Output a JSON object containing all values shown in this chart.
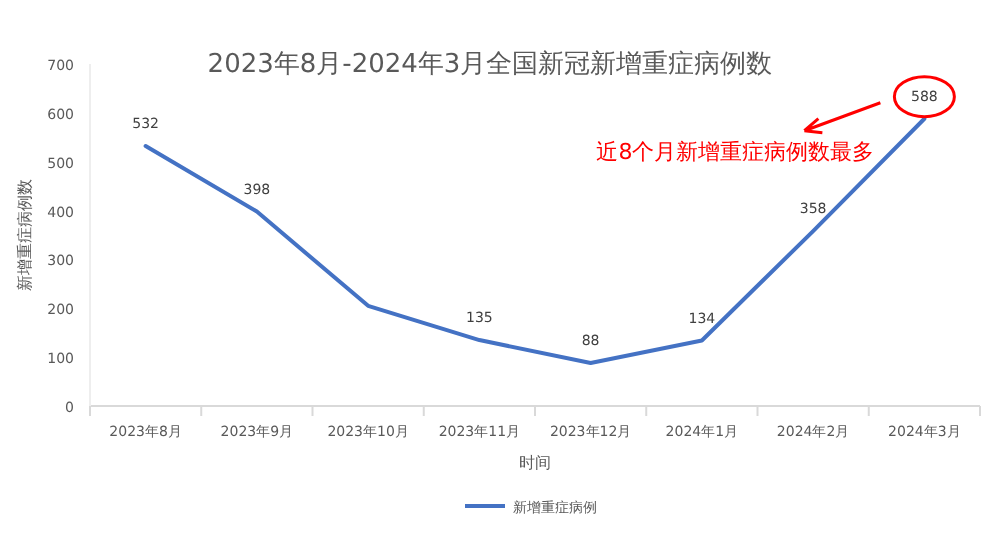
{
  "chart_data": {
    "type": "line",
    "title": "2023年8月-2024年3月全国新冠新增重症病例数",
    "xlabel": "时间",
    "ylabel": "新增重症病例数",
    "categories": [
      "2023年8月",
      "2023年9月",
      "2023年10月",
      "2023年11月",
      "2023年12月",
      "2024年1月",
      "2024年2月",
      "2024年3月"
    ],
    "series": [
      {
        "name": "新增重症病例",
        "color": "#4472c4",
        "values": [
          532,
          398,
          205,
          135,
          88,
          134,
          358,
          588
        ],
        "value_labels": [
          "532",
          "398",
          null,
          "135",
          "88",
          "134",
          "358",
          "588"
        ]
      }
    ],
    "ylim": [
      0,
      700
    ],
    "yticks": [
      0,
      100,
      200,
      300,
      400,
      500,
      600,
      700
    ],
    "grid": false,
    "legend": "bottom",
    "marker": "none",
    "line_style": "solid",
    "annotations": [
      {
        "text": "近8个月新增重症病例数最多",
        "x": "2024年3月",
        "y": 588
      }
    ]
  }
}
